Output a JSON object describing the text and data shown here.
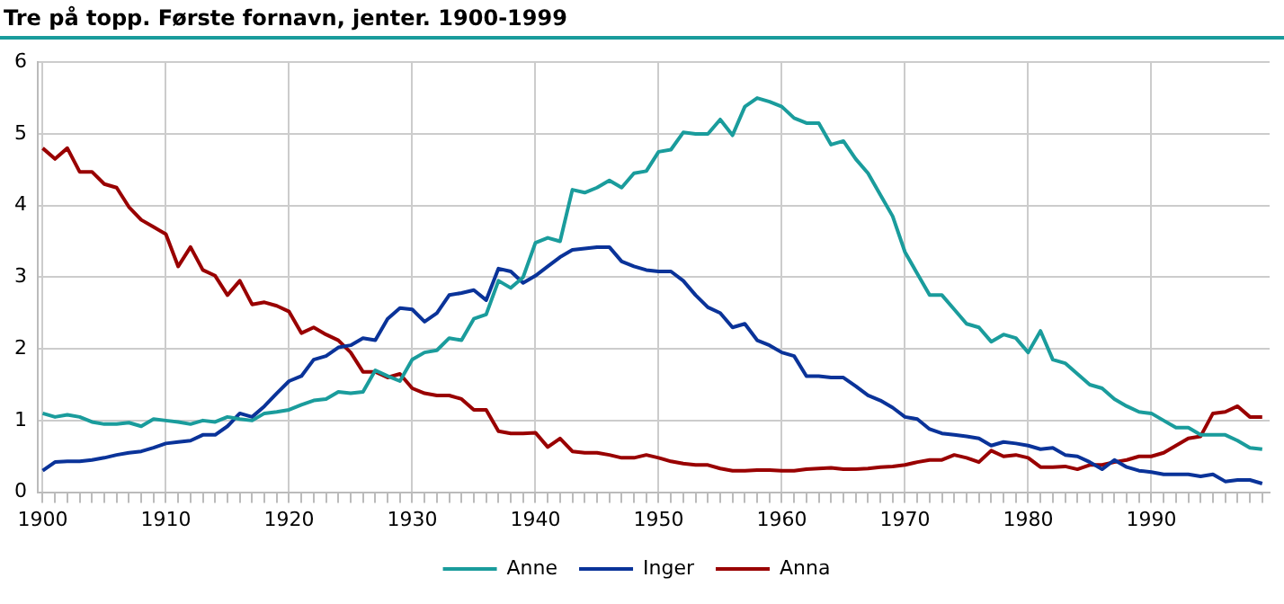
{
  "chart_data": {
    "type": "line",
    "title": "Tre på topp. Første fornavn, jenter. 1900-1999",
    "x": [
      1900,
      1901,
      1902,
      1903,
      1904,
      1905,
      1906,
      1907,
      1908,
      1909,
      1910,
      1911,
      1912,
      1913,
      1914,
      1915,
      1916,
      1917,
      1918,
      1919,
      1920,
      1921,
      1922,
      1923,
      1924,
      1925,
      1926,
      1927,
      1928,
      1929,
      1930,
      1931,
      1932,
      1933,
      1934,
      1935,
      1936,
      1937,
      1938,
      1939,
      1940,
      1941,
      1942,
      1943,
      1944,
      1945,
      1946,
      1947,
      1948,
      1949,
      1950,
      1951,
      1952,
      1953,
      1954,
      1955,
      1956,
      1957,
      1958,
      1959,
      1960,
      1961,
      1962,
      1963,
      1964,
      1965,
      1966,
      1967,
      1968,
      1969,
      1970,
      1971,
      1972,
      1973,
      1974,
      1975,
      1976,
      1977,
      1978,
      1979,
      1980,
      1981,
      1982,
      1983,
      1984,
      1985,
      1986,
      1987,
      1988,
      1989,
      1990,
      1991,
      1992,
      1993,
      1994,
      1995,
      1996,
      1997,
      1998,
      1999
    ],
    "series": [
      {
        "name": "Anne",
        "color": "#1a9c9c",
        "values": [
          1.1,
          1.05,
          1.08,
          1.05,
          0.98,
          0.95,
          0.95,
          0.97,
          0.92,
          1.02,
          1.0,
          0.98,
          0.95,
          1.0,
          0.98,
          1.05,
          1.02,
          1.0,
          1.1,
          1.12,
          1.15,
          1.22,
          1.28,
          1.3,
          1.4,
          1.38,
          1.4,
          1.7,
          1.62,
          1.55,
          1.85,
          1.95,
          1.98,
          2.15,
          2.12,
          2.42,
          2.48,
          2.95,
          2.85,
          3.0,
          3.48,
          3.55,
          3.5,
          4.22,
          4.18,
          4.25,
          4.35,
          4.25,
          4.45,
          4.48,
          4.75,
          4.78,
          5.02,
          5.0,
          5.0,
          5.2,
          4.98,
          5.38,
          5.5,
          5.45,
          5.38,
          5.22,
          5.15,
          5.15,
          4.85,
          4.9,
          4.65,
          4.45,
          4.15,
          3.85,
          3.35,
          3.05,
          2.75,
          2.75,
          2.55,
          2.35,
          2.3,
          2.1,
          2.2,
          2.15,
          1.95,
          2.25,
          1.85,
          1.8,
          1.65,
          1.5,
          1.45,
          1.3,
          1.2,
          1.12,
          1.1,
          1.0,
          0.9,
          0.9,
          0.8,
          0.8,
          0.8,
          0.72,
          0.62,
          0.6
        ]
      },
      {
        "name": "Inger",
        "color": "#0a3399",
        "values": [
          0.3,
          0.42,
          0.43,
          0.43,
          0.45,
          0.48,
          0.52,
          0.55,
          0.57,
          0.62,
          0.68,
          0.7,
          0.72,
          0.8,
          0.8,
          0.92,
          1.1,
          1.05,
          1.2,
          1.38,
          1.55,
          1.62,
          1.85,
          1.9,
          2.02,
          2.05,
          2.15,
          2.12,
          2.42,
          2.57,
          2.55,
          2.38,
          2.5,
          2.75,
          2.78,
          2.82,
          2.68,
          3.12,
          3.08,
          2.92,
          3.02,
          3.15,
          3.28,
          3.38,
          3.4,
          3.42,
          3.42,
          3.22,
          3.15,
          3.1,
          3.08,
          3.08,
          2.95,
          2.75,
          2.58,
          2.5,
          2.3,
          2.35,
          2.12,
          2.05,
          1.95,
          1.9,
          1.62,
          1.62,
          1.6,
          1.6,
          1.48,
          1.35,
          1.28,
          1.18,
          1.05,
          1.02,
          0.88,
          0.82,
          0.8,
          0.78,
          0.75,
          0.65,
          0.7,
          0.68,
          0.65,
          0.6,
          0.62,
          0.52,
          0.5,
          0.42,
          0.32,
          0.45,
          0.35,
          0.3,
          0.28,
          0.25,
          0.25,
          0.25,
          0.22,
          0.25,
          0.15,
          0.17,
          0.17,
          0.12
        ]
      },
      {
        "name": "Anna",
        "color": "#990000",
        "values": [
          4.8,
          4.65,
          4.8,
          4.47,
          4.47,
          4.3,
          4.25,
          3.98,
          3.8,
          3.7,
          3.6,
          3.15,
          3.42,
          3.1,
          3.02,
          2.75,
          2.95,
          2.62,
          2.65,
          2.6,
          2.52,
          2.22,
          2.3,
          2.2,
          2.12,
          1.95,
          1.68,
          1.68,
          1.6,
          1.65,
          1.45,
          1.38,
          1.35,
          1.35,
          1.3,
          1.15,
          1.15,
          0.85,
          0.82,
          0.82,
          0.83,
          0.63,
          0.75,
          0.57,
          0.55,
          0.55,
          0.52,
          0.48,
          0.48,
          0.52,
          0.48,
          0.43,
          0.4,
          0.38,
          0.38,
          0.33,
          0.3,
          0.3,
          0.31,
          0.31,
          0.3,
          0.3,
          0.32,
          0.33,
          0.34,
          0.32,
          0.32,
          0.33,
          0.35,
          0.36,
          0.38,
          0.42,
          0.45,
          0.45,
          0.52,
          0.48,
          0.42,
          0.58,
          0.5,
          0.52,
          0.48,
          0.35,
          0.35,
          0.36,
          0.32,
          0.38,
          0.38,
          0.42,
          0.45,
          0.5,
          0.5,
          0.55,
          0.65,
          0.75,
          0.78,
          1.1,
          1.12,
          1.2,
          1.05,
          1.05
        ]
      }
    ],
    "xlim": [
      1899.6,
      1999.6
    ],
    "xticks": [
      1900,
      {
        "value": 1901,
        "label": null
      },
      {
        "value": 1902,
        "label": null
      },
      {
        "value": 1903,
        "label": null
      },
      {
        "value": 1904,
        "label": null
      },
      {
        "value": 1905,
        "label": null
      },
      {
        "value": 1906,
        "label": null
      },
      {
        "value": 1907,
        "label": null
      },
      {
        "value": 1908,
        "label": null
      },
      {
        "value": 1909,
        "label": null
      },
      1910,
      {
        "value": 1911,
        "label": null
      },
      {
        "value": 1912,
        "label": null
      },
      {
        "value": 1913,
        "label": null
      },
      {
        "value": 1914,
        "label": null
      },
      {
        "value": 1915,
        "label": null
      },
      {
        "value": 1916,
        "label": null
      },
      {
        "value": 1917,
        "label": null
      },
      {
        "value": 1918,
        "label": null
      },
      {
        "value": 1919,
        "label": null
      },
      1920,
      {
        "value": 1921,
        "label": null
      },
      {
        "value": 1922,
        "label": null
      },
      {
        "value": 1923,
        "label": null
      },
      {
        "value": 1924,
        "label": null
      },
      {
        "value": 1925,
        "label": null
      },
      {
        "value": 1926,
        "label": null
      },
      {
        "value": 1927,
        "label": null
      },
      {
        "value": 1928,
        "label": null
      },
      {
        "value": 1929,
        "label": null
      },
      1930,
      {
        "value": 1931,
        "label": null
      },
      {
        "value": 1932,
        "label": null
      },
      {
        "value": 1933,
        "label": null
      },
      {
        "value": 1934,
        "label": null
      },
      {
        "value": 1935,
        "label": null
      },
      {
        "value": 1936,
        "label": null
      },
      {
        "value": 1937,
        "label": null
      },
      {
        "value": 1938,
        "label": null
      },
      {
        "value": 1939,
        "label": null
      },
      1940,
      {
        "value": 1941,
        "label": null
      },
      {
        "value": 1942,
        "label": null
      },
      {
        "value": 1943,
        "label": null
      },
      {
        "value": 1944,
        "label": null
      },
      {
        "value": 1945,
        "label": null
      },
      {
        "value": 1946,
        "label": null
      },
      {
        "value": 1947,
        "label": null
      },
      {
        "value": 1948,
        "label": null
      },
      {
        "value": 1949,
        "label": null
      },
      1950,
      {
        "value": 1951,
        "label": null
      },
      {
        "value": 1952,
        "label": null
      },
      {
        "value": 1953,
        "label": null
      },
      {
        "value": 1954,
        "label": null
      },
      {
        "value": 1955,
        "label": null
      },
      {
        "value": 1956,
        "label": null
      },
      {
        "value": 1957,
        "label": null
      },
      {
        "value": 1958,
        "label": null
      },
      {
        "value": 1959,
        "label": null
      },
      1960,
      {
        "value": 1961,
        "label": null
      },
      {
        "value": 1962,
        "label": null
      },
      {
        "value": 1963,
        "label": null
      },
      {
        "value": 1964,
        "label": null
      },
      {
        "value": 1965,
        "label": null
      },
      {
        "value": 1966,
        "label": null
      },
      {
        "value": 1967,
        "label": null
      },
      {
        "value": 1968,
        "label": null
      },
      {
        "value": 1969,
        "label": null
      },
      1970,
      {
        "value": 1971,
        "label": null
      },
      {
        "value": 1972,
        "label": null
      },
      {
        "value": 1973,
        "label": null
      },
      {
        "value": 1974,
        "label": null
      },
      {
        "value": 1975,
        "label": null
      },
      {
        "value": 1976,
        "label": null
      },
      {
        "value": 1977,
        "label": null
      },
      {
        "value": 1978,
        "label": null
      },
      {
        "value": 1979,
        "label": null
      },
      1980,
      {
        "value": 1981,
        "label": null
      },
      {
        "value": 1982,
        "label": null
      },
      {
        "value": 1983,
        "label": null
      },
      {
        "value": 1984,
        "label": null
      },
      {
        "value": 1985,
        "label": null
      },
      {
        "value": 1986,
        "label": null
      },
      {
        "value": 1987,
        "label": null
      },
      {
        "value": 1988,
        "label": null
      },
      {
        "value": 1989,
        "label": null
      },
      1990,
      {
        "value": 1991,
        "label": null
      },
      {
        "value": 1992,
        "label": null
      },
      {
        "value": 1993,
        "label": null
      },
      {
        "value": 1994,
        "label": null
      },
      {
        "value": 1995,
        "label": null
      },
      {
        "value": 1996,
        "label": null
      },
      {
        "value": 1997,
        "label": null
      },
      {
        "value": 1998,
        "label": null
      },
      {
        "value": 1999,
        "label": null
      }
    ],
    "ylim": [
      0,
      6
    ],
    "yticks": [
      0,
      1,
      2,
      3,
      4,
      5,
      6
    ],
    "grid": true,
    "legend": "bottom",
    "marker": "none",
    "line_style": "solid"
  }
}
